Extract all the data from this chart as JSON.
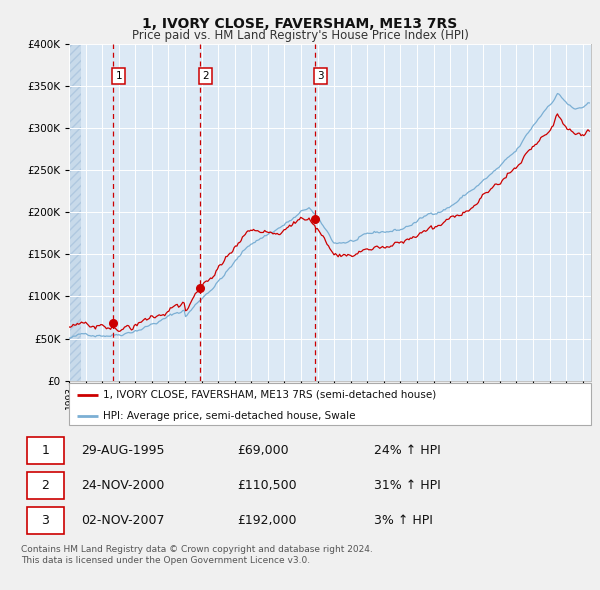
{
  "title": "1, IVORY CLOSE, FAVERSHAM, ME13 7RS",
  "subtitle": "Price paid vs. HM Land Registry's House Price Index (HPI)",
  "line1_label": "1, IVORY CLOSE, FAVERSHAM, ME13 7RS (semi-detached house)",
  "line2_label": "HPI: Average price, semi-detached house, Swale",
  "transactions": [
    {
      "num": 1,
      "date": "29-AUG-1995",
      "year": 1995.66,
      "price": 69000,
      "hpi_pct": "24% ↑ HPI"
    },
    {
      "num": 2,
      "date": "24-NOV-2000",
      "year": 2000.9,
      "price": 110500,
      "hpi_pct": "31% ↑ HPI"
    },
    {
      "num": 3,
      "date": "02-NOV-2007",
      "year": 2007.84,
      "price": 192000,
      "hpi_pct": "3% ↑ HPI"
    }
  ],
  "ylim": [
    0,
    400000
  ],
  "yticks": [
    0,
    50000,
    100000,
    150000,
    200000,
    250000,
    300000,
    350000,
    400000
  ],
  "xlim_start": 1993.0,
  "xlim_end": 2024.5,
  "background_color": "#dce9f5",
  "grid_color": "#ffffff",
  "line1_color": "#cc0000",
  "line2_color": "#7bafd4",
  "dashed_line_color": "#cc0000",
  "footnote": "Contains HM Land Registry data © Crown copyright and database right 2024.\nThis data is licensed under the Open Government Licence v3.0."
}
